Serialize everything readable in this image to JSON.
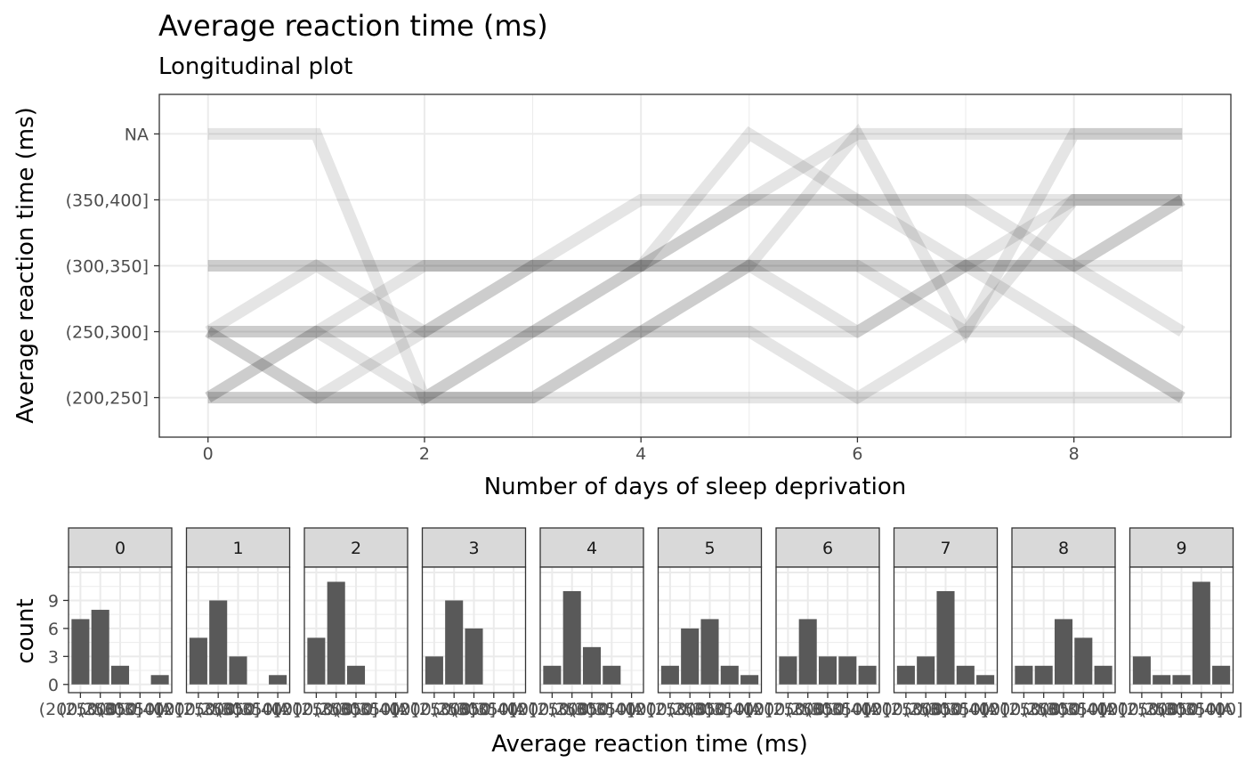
{
  "chart_data": [
    {
      "type": "line",
      "title": "Average reaction time (ms)",
      "subtitle": "Longitudinal plot",
      "xlabel": "Number of days of sleep deprivation",
      "ylabel": "Average reaction time (ms)",
      "x": [
        0,
        1,
        2,
        3,
        4,
        5,
        6,
        7,
        8,
        9
      ],
      "x_ticks": [
        "0",
        "2",
        "4",
        "6",
        "8"
      ],
      "y_categories": [
        "(200,250]",
        "(250,300]",
        "(300,350]",
        "(350,400]",
        "NA"
      ],
      "grid": true,
      "series": [
        {
          "values": [
            "(250,300]",
            "(250,300]",
            "(250,300]",
            "(250,300]",
            "(250,300]",
            "(300,350]",
            "(250,300]",
            "(300,350]",
            "(300,350]",
            "(350,400]"
          ]
        },
        {
          "values": [
            "(200,250]",
            "(250,300]",
            "(250,300]",
            "(300,350]",
            "(300,350]",
            "(300,350]",
            "(300,350]",
            "(300,350]",
            "(350,400]",
            "(350,400]"
          ]
        },
        {
          "values": [
            "(200,250]",
            "(200,250]",
            "(200,250]",
            "(200,250]",
            "(200,250]",
            "(200,250]",
            "(200,250]",
            "(200,250]",
            "(200,250]",
            "(200,250]"
          ]
        },
        {
          "values": [
            "(300,350]",
            "(300,350]",
            "(300,350]",
            "(300,350]",
            "(300,350]",
            "(300,350]",
            "(300,350]",
            "(300,350]",
            "(300,350]",
            "(300,350]"
          ]
        },
        {
          "values": [
            "(250,300]",
            "(300,350]",
            "(250,300]",
            "(250,300]",
            "(250,300]",
            "(250,300]",
            "(250,300]",
            "(300,350]",
            "(300,350]",
            "(350,400]"
          ]
        },
        {
          "values": [
            "(200,250]",
            "(250,300]",
            "(300,350]",
            "(300,350]",
            "(350,400]",
            "(350,400]",
            "(350,400]",
            "(350,400]",
            "(350,400]",
            "(350,400]"
          ]
        },
        {
          "values": [
            "NA",
            "NA",
            "(200,250]",
            "(250,300]",
            "(300,350]",
            "(350,400]",
            "NA",
            "NA",
            "NA",
            "NA"
          ]
        },
        {
          "values": [
            "(250,300]",
            "(200,250]",
            "(200,250]",
            "(200,250]",
            "(250,300]",
            "(250,300]",
            "(200,250]",
            "(250,300]",
            "(250,300]",
            "(200,250]"
          ]
        },
        {
          "values": [
            "(250,300]",
            "(200,250]",
            "(250,300]",
            "(300,350]",
            "(300,350]",
            "NA",
            "(350,400]",
            "(300,350]",
            "(250,300]",
            "(200,250]"
          ]
        },
        {
          "values": [
            "(200,250]",
            "(200,250]",
            "(200,250]",
            "(200,250]",
            "(250,300]",
            "(300,350]",
            "NA",
            "(250,300]",
            "NA",
            "NA"
          ]
        },
        {
          "values": [
            "(250,300]",
            "(250,300]",
            "(200,250]",
            "(250,300]",
            "(300,350]",
            "(350,400]",
            "(350,400]",
            "(350,400]",
            "(300,350]",
            "(250,300]"
          ]
        },
        {
          "values": [
            "(300,350]",
            "(300,350]",
            "(300,350]",
            "(300,350]",
            "(300,350]",
            "(300,350]",
            "(300,350]",
            "(250,300]",
            "(350,400]",
            "(350,400]"
          ]
        }
      ]
    },
    {
      "type": "bar",
      "xlabel": "Average reaction time (ms)",
      "ylabel": "count",
      "categories": [
        "(200,250]",
        "(250,300]",
        "(300,350]",
        "(350,400]",
        "NA"
      ],
      "y_ticks": [
        0,
        3,
        6,
        9
      ],
      "ylim": [
        0,
        12
      ],
      "bar_color": "#595959",
      "strip_color": "#d9d9d9",
      "facets": [
        {
          "label": "0",
          "values": [
            7,
            8,
            2,
            0,
            1
          ]
        },
        {
          "label": "1",
          "values": [
            5,
            9,
            3,
            0,
            1
          ]
        },
        {
          "label": "2",
          "values": [
            5,
            11,
            2,
            0,
            0
          ]
        },
        {
          "label": "3",
          "values": [
            3,
            9,
            6,
            0,
            0
          ]
        },
        {
          "label": "4",
          "values": [
            2,
            10,
            4,
            2,
            0
          ]
        },
        {
          "label": "5",
          "values": [
            2,
            6,
            7,
            2,
            1
          ]
        },
        {
          "label": "6",
          "values": [
            3,
            7,
            3,
            3,
            2
          ]
        },
        {
          "label": "7",
          "values": [
            2,
            3,
            10,
            2,
            1
          ]
        },
        {
          "label": "8",
          "values": [
            2,
            2,
            7,
            5,
            2
          ]
        },
        {
          "label": "9",
          "values": [
            3,
            1,
            1,
            11,
            2
          ]
        }
      ]
    }
  ]
}
